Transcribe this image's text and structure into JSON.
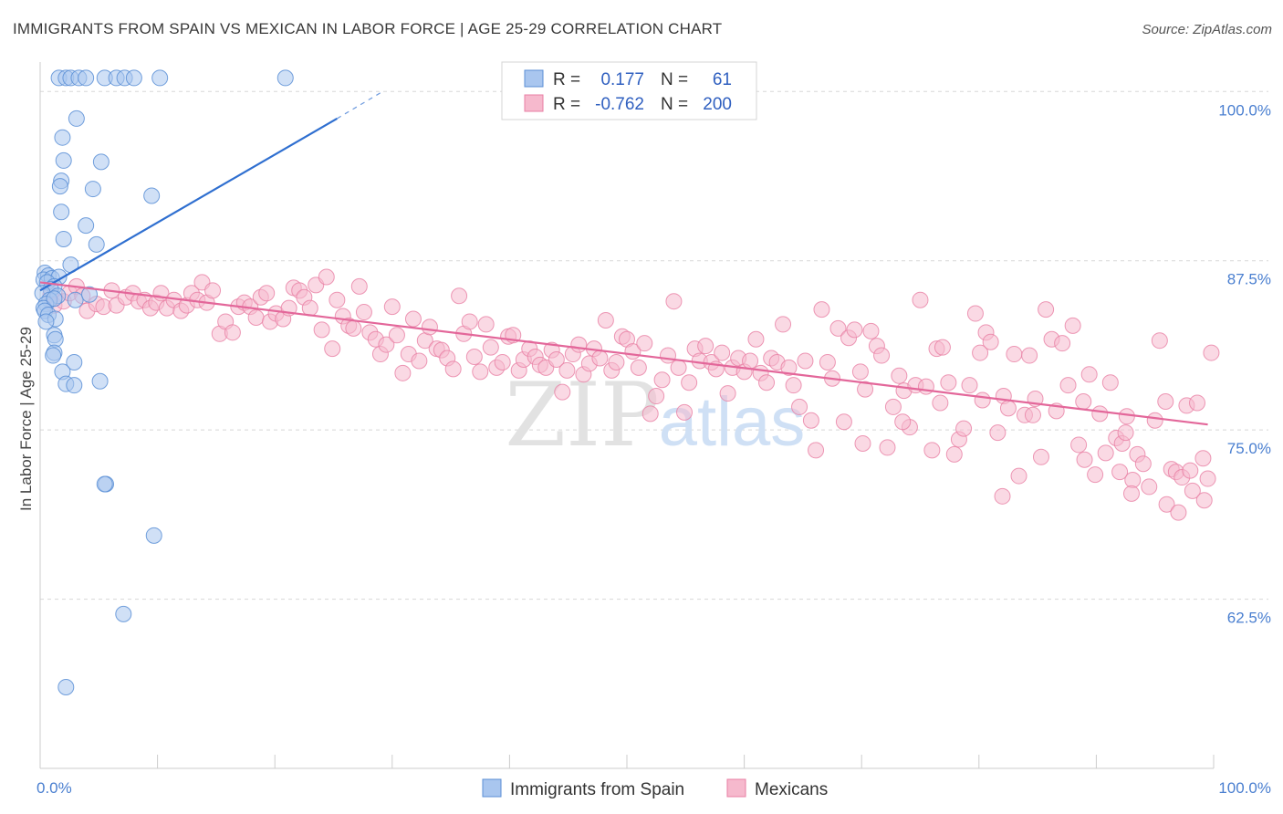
{
  "title": "IMMIGRANTS FROM SPAIN VS MEXICAN IN LABOR FORCE | AGE 25-29 CORRELATION CHART",
  "source": "Source: ZipAtlas.com",
  "watermark": {
    "zip": "ZIP",
    "atlas": "atlas"
  },
  "colors": {
    "blue_fill": "#a9c6ef",
    "blue_stroke": "#5b8fd6",
    "blue_line": "#2f6fd0",
    "pink_fill": "#f6b9cd",
    "pink_stroke": "#e87fa4",
    "pink_line": "#e3679a",
    "tick_text": "#4a7fd0",
    "grid": "#d8d8d8"
  },
  "legend": {
    "rows": [
      {
        "r_label": "R =",
        "r_value": "0.177",
        "n_label": "N =",
        "n_value": "61"
      },
      {
        "r_label": "R =",
        "r_value": "-0.762",
        "n_label": "N =",
        "n_value": "200"
      }
    ]
  },
  "chart_data": {
    "type": "scatter",
    "title": "IMMIGRANTS FROM SPAIN VS MEXICAN IN LABOR FORCE | AGE 25-29 CORRELATION CHART",
    "xlabel": "",
    "ylabel": "In Labor Force | Age 25-29",
    "xlim": [
      0,
      100
    ],
    "ylim": [
      50,
      101.5
    ],
    "x_ticks": [
      "0.0%",
      "100.0%"
    ],
    "y_ticks": [
      {
        "value": 100,
        "label": "100.0%"
      },
      {
        "value": 87.5,
        "label": "87.5%"
      },
      {
        "value": 75,
        "label": "75.0%"
      },
      {
        "value": 62.5,
        "label": "62.5%"
      }
    ],
    "grid": true,
    "legend_position": "top-center",
    "series": [
      {
        "name": "Immigrants from Spain",
        "color": "#a9c6ef",
        "R": 0.177,
        "N": 61,
        "trend": {
          "x0": 0,
          "y0": 85.3,
          "x1": 25.3,
          "y1": 98.0,
          "dashed_to_x": 29,
          "dashed_to_y": 99.9
        },
        "points": [
          [
            1.6,
            101
          ],
          [
            2.2,
            101
          ],
          [
            2.6,
            101
          ],
          [
            3.3,
            101
          ],
          [
            3.9,
            101
          ],
          [
            5.5,
            101
          ],
          [
            6.5,
            101
          ],
          [
            7.2,
            101
          ],
          [
            8.0,
            101
          ],
          [
            10.2,
            101
          ],
          [
            20.9,
            101
          ],
          [
            3.1,
            98.0
          ],
          [
            1.9,
            96.6
          ],
          [
            2.0,
            94.9
          ],
          [
            5.2,
            94.8
          ],
          [
            1.8,
            93.4
          ],
          [
            1.7,
            93.0
          ],
          [
            4.5,
            92.8
          ],
          [
            9.5,
            92.3
          ],
          [
            1.8,
            91.1
          ],
          [
            3.9,
            90.1
          ],
          [
            2.0,
            89.1
          ],
          [
            4.8,
            88.7
          ],
          [
            2.6,
            87.2
          ],
          [
            0.4,
            86.6
          ],
          [
            0.7,
            86.4
          ],
          [
            0.3,
            86.1
          ],
          [
            1.0,
            86.2
          ],
          [
            1.6,
            86.3
          ],
          [
            0.6,
            85.9
          ],
          [
            1.2,
            85.6
          ],
          [
            0.9,
            85.4
          ],
          [
            0.2,
            85.1
          ],
          [
            1.5,
            84.9
          ],
          [
            0.8,
            84.6
          ],
          [
            0.5,
            84.3
          ],
          [
            0.3,
            84.0
          ],
          [
            1.2,
            84.7
          ],
          [
            0.4,
            83.8
          ],
          [
            0.7,
            83.5
          ],
          [
            1.3,
            83.2
          ],
          [
            3.0,
            84.6
          ],
          [
            4.2,
            85.0
          ],
          [
            0.5,
            83.0
          ],
          [
            1.2,
            82.0
          ],
          [
            1.3,
            81.7
          ],
          [
            1.2,
            80.7
          ],
          [
            1.1,
            80.5
          ],
          [
            2.9,
            80.0
          ],
          [
            1.9,
            79.3
          ],
          [
            2.2,
            78.4
          ],
          [
            2.9,
            78.3
          ],
          [
            5.1,
            78.6
          ],
          [
            5.6,
            71.0
          ],
          [
            5.5,
            71.0
          ],
          [
            9.7,
            67.2
          ],
          [
            7.1,
            61.4
          ],
          [
            2.2,
            56.0
          ]
        ]
      },
      {
        "name": "Mexicans",
        "color": "#f6b9cd",
        "R": -0.762,
        "N": 200,
        "trend": {
          "x0": 0,
          "y0": 85.9,
          "x1": 99.5,
          "y1": 75.4
        },
        "points": [
          [
            0.9,
            85.0
          ],
          [
            1.2,
            84.2
          ],
          [
            2.0,
            84.5
          ],
          [
            2.5,
            85.1
          ],
          [
            3.1,
            85.6
          ],
          [
            3.6,
            84.9
          ],
          [
            4.0,
            83.8
          ],
          [
            4.8,
            84.3
          ],
          [
            5.4,
            84.1
          ],
          [
            6.1,
            85.3
          ],
          [
            6.5,
            84.2
          ],
          [
            7.3,
            84.8
          ],
          [
            7.9,
            85.1
          ],
          [
            8.4,
            84.5
          ],
          [
            8.9,
            84.6
          ],
          [
            9.4,
            84.0
          ],
          [
            9.9,
            84.4
          ],
          [
            10.3,
            85.1
          ],
          [
            10.8,
            84.0
          ],
          [
            11.4,
            84.6
          ],
          [
            12.0,
            83.8
          ],
          [
            12.5,
            84.2
          ],
          [
            12.9,
            85.1
          ],
          [
            13.4,
            84.6
          ],
          [
            13.8,
            85.9
          ],
          [
            14.2,
            84.4
          ],
          [
            14.7,
            85.3
          ],
          [
            15.3,
            82.1
          ],
          [
            15.8,
            83.0
          ],
          [
            16.4,
            82.2
          ],
          [
            16.9,
            84.1
          ],
          [
            17.4,
            84.4
          ],
          [
            17.9,
            84.1
          ],
          [
            18.4,
            83.3
          ],
          [
            18.8,
            84.8
          ],
          [
            19.3,
            85.1
          ],
          [
            19.6,
            83.0
          ],
          [
            20.1,
            83.6
          ],
          [
            20.7,
            83.2
          ],
          [
            21.2,
            84.0
          ],
          [
            21.6,
            85.5
          ],
          [
            22.1,
            85.3
          ],
          [
            22.5,
            84.8
          ],
          [
            23.0,
            84.0
          ],
          [
            23.5,
            85.7
          ],
          [
            24.0,
            82.4
          ],
          [
            24.4,
            86.3
          ],
          [
            24.9,
            81.0
          ],
          [
            25.3,
            84.6
          ],
          [
            25.8,
            83.4
          ],
          [
            26.3,
            82.7
          ],
          [
            26.7,
            82.5
          ],
          [
            27.2,
            85.6
          ],
          [
            27.6,
            83.7
          ],
          [
            28.1,
            82.2
          ],
          [
            28.6,
            81.7
          ],
          [
            29.0,
            80.6
          ],
          [
            29.5,
            81.3
          ],
          [
            30.0,
            84.1
          ],
          [
            30.4,
            82.0
          ],
          [
            30.9,
            79.2
          ],
          [
            31.4,
            80.6
          ],
          [
            31.8,
            83.2
          ],
          [
            32.3,
            80.1
          ],
          [
            32.8,
            81.6
          ],
          [
            33.2,
            82.6
          ],
          [
            33.8,
            81.0
          ],
          [
            34.2,
            80.9
          ],
          [
            34.7,
            80.3
          ],
          [
            35.2,
            79.5
          ],
          [
            35.7,
            84.9
          ],
          [
            36.1,
            82.1
          ],
          [
            36.6,
            83.0
          ],
          [
            37.0,
            80.4
          ],
          [
            37.5,
            79.3
          ],
          [
            38.0,
            82.8
          ],
          [
            38.4,
            81.1
          ],
          [
            38.9,
            79.6
          ],
          [
            39.4,
            80.0
          ],
          [
            39.9,
            81.9
          ],
          [
            40.3,
            82.0
          ],
          [
            40.8,
            79.4
          ],
          [
            41.2,
            80.2
          ],
          [
            41.7,
            81.0
          ],
          [
            42.2,
            80.4
          ],
          [
            42.6,
            79.8
          ],
          [
            43.1,
            79.6
          ],
          [
            43.6,
            80.9
          ],
          [
            44.0,
            80.2
          ],
          [
            44.5,
            77.8
          ],
          [
            44.9,
            79.4
          ],
          [
            45.4,
            80.6
          ],
          [
            45.9,
            81.3
          ],
          [
            46.3,
            79.1
          ],
          [
            46.8,
            79.9
          ],
          [
            47.2,
            81.0
          ],
          [
            47.7,
            80.3
          ],
          [
            48.2,
            83.1
          ],
          [
            48.7,
            79.4
          ],
          [
            49.1,
            80.0
          ],
          [
            49.6,
            81.9
          ],
          [
            50.0,
            81.7
          ],
          [
            50.5,
            80.8
          ],
          [
            51.0,
            79.6
          ],
          [
            51.5,
            81.4
          ],
          [
            52.0,
            76.2
          ],
          [
            52.5,
            77.5
          ],
          [
            53.0,
            78.7
          ],
          [
            53.5,
            80.5
          ],
          [
            54.0,
            84.5
          ],
          [
            54.4,
            79.6
          ],
          [
            54.9,
            76.3
          ],
          [
            55.3,
            78.5
          ],
          [
            55.8,
            81.0
          ],
          [
            56.2,
            80.1
          ],
          [
            56.7,
            81.2
          ],
          [
            57.2,
            80.0
          ],
          [
            57.6,
            79.5
          ],
          [
            58.1,
            80.7
          ],
          [
            58.6,
            77.7
          ],
          [
            59.0,
            79.6
          ],
          [
            59.5,
            80.3
          ],
          [
            60.0,
            79.3
          ],
          [
            60.5,
            80.1
          ],
          [
            61.0,
            81.7
          ],
          [
            61.4,
            79.2
          ],
          [
            61.9,
            78.5
          ],
          [
            62.3,
            80.3
          ],
          [
            62.8,
            80.0
          ],
          [
            63.3,
            82.8
          ],
          [
            63.8,
            79.6
          ],
          [
            64.2,
            78.3
          ],
          [
            64.7,
            76.7
          ],
          [
            65.2,
            80.1
          ],
          [
            65.7,
            75.7
          ],
          [
            66.1,
            73.5
          ],
          [
            66.6,
            83.9
          ],
          [
            67.1,
            80.0
          ],
          [
            67.5,
            78.8
          ],
          [
            68.0,
            82.5
          ],
          [
            68.5,
            75.6
          ],
          [
            68.9,
            81.8
          ],
          [
            69.4,
            82.4
          ],
          [
            69.9,
            79.3
          ],
          [
            70.3,
            78.0
          ],
          [
            70.8,
            82.3
          ],
          [
            71.3,
            81.2
          ],
          [
            71.7,
            80.5
          ],
          [
            72.2,
            73.7
          ],
          [
            72.7,
            76.7
          ],
          [
            73.2,
            79.0
          ],
          [
            73.6,
            77.9
          ],
          [
            74.1,
            75.2
          ],
          [
            74.6,
            78.3
          ],
          [
            75.0,
            84.6
          ],
          [
            75.5,
            78.2
          ],
          [
            76.0,
            73.5
          ],
          [
            76.4,
            81.0
          ],
          [
            76.9,
            81.1
          ],
          [
            77.4,
            78.5
          ],
          [
            77.9,
            73.2
          ],
          [
            78.3,
            74.3
          ],
          [
            78.7,
            75.1
          ],
          [
            79.2,
            78.3
          ],
          [
            79.7,
            83.6
          ],
          [
            80.1,
            80.7
          ],
          [
            80.6,
            82.2
          ],
          [
            81.0,
            81.5
          ],
          [
            81.6,
            74.8
          ],
          [
            82.1,
            77.5
          ],
          [
            82.5,
            76.6
          ],
          [
            83.0,
            80.6
          ],
          [
            83.4,
            71.6
          ],
          [
            83.9,
            76.1
          ],
          [
            84.3,
            80.5
          ],
          [
            84.8,
            77.3
          ],
          [
            85.3,
            73.0
          ],
          [
            85.7,
            83.9
          ],
          [
            86.2,
            81.7
          ],
          [
            86.6,
            76.4
          ],
          [
            87.1,
            81.4
          ],
          [
            87.6,
            78.3
          ],
          [
            88.0,
            82.7
          ],
          [
            88.5,
            73.9
          ],
          [
            88.9,
            77.1
          ],
          [
            89.4,
            79.1
          ],
          [
            89.9,
            71.7
          ],
          [
            90.3,
            76.2
          ],
          [
            90.8,
            73.3
          ],
          [
            91.2,
            78.5
          ],
          [
            91.7,
            74.4
          ],
          [
            92.2,
            74.0
          ],
          [
            92.6,
            76.0
          ],
          [
            93.1,
            71.3
          ],
          [
            93.5,
            73.2
          ],
          [
            94.0,
            72.5
          ],
          [
            94.5,
            70.8
          ],
          [
            95.0,
            75.7
          ],
          [
            95.4,
            81.6
          ],
          [
            95.9,
            77.1
          ],
          [
            96.4,
            72.1
          ],
          [
            96.8,
            71.9
          ],
          [
            97.3,
            71.5
          ],
          [
            97.7,
            76.8
          ],
          [
            98.2,
            70.5
          ],
          [
            98.6,
            77.0
          ],
          [
            99.1,
            72.9
          ],
          [
            99.5,
            71.4
          ],
          [
            99.8,
            80.7
          ],
          [
            89.0,
            72.8
          ],
          [
            93.0,
            70.3
          ],
          [
            92.5,
            74.8
          ],
          [
            82.0,
            70.1
          ],
          [
            96.0,
            69.5
          ],
          [
            97.0,
            68.9
          ],
          [
            99.2,
            69.8
          ],
          [
            98.0,
            72.0
          ],
          [
            92.0,
            71.9
          ],
          [
            84.6,
            76.1
          ],
          [
            80.3,
            77.2
          ],
          [
            76.7,
            77.0
          ],
          [
            73.5,
            75.6
          ],
          [
            70.1,
            74.0
          ]
        ]
      }
    ]
  }
}
